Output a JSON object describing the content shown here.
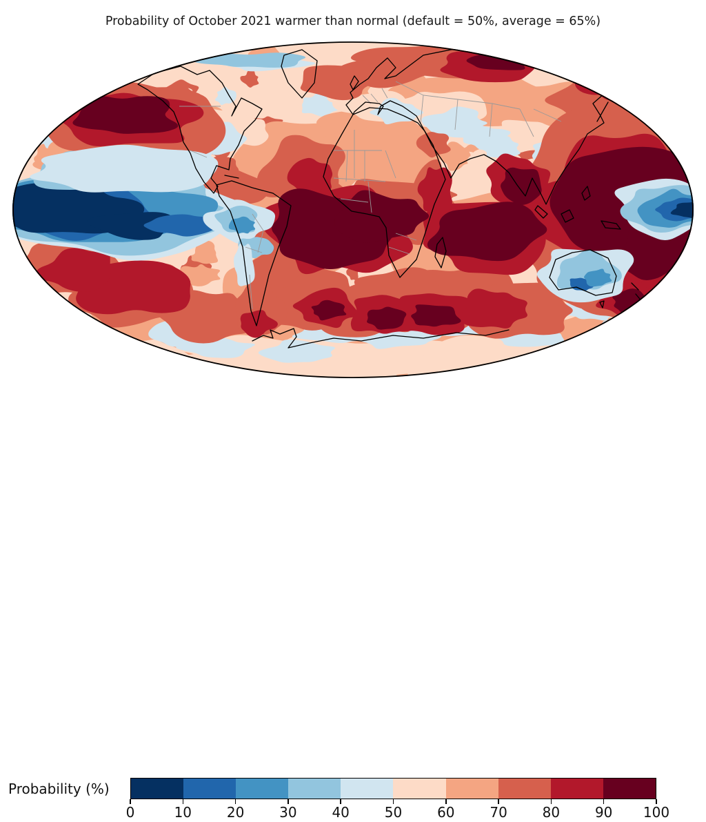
{
  "title": "Probability of October 2021 warmer than normal (default = 50%, average = 65%)",
  "colorbar": {
    "label": "Probability (%)",
    "ticks": [
      "0",
      "10",
      "20",
      "30",
      "40",
      "50",
      "60",
      "70",
      "80",
      "90",
      "100"
    ],
    "colors": [
      "#053061",
      "#2166ac",
      "#4393c3",
      "#92c5de",
      "#d1e5f0",
      "#fddbc7",
      "#f4a582",
      "#d6604d",
      "#b2182b",
      "#67001f"
    ]
  },
  "map": {
    "coastline_color": "#000000",
    "border_color": "#999999",
    "outline_color": "#000000",
    "background": "#ffffff"
  },
  "chart_data": {
    "type": "heatmap",
    "projection": "Mollweide world map (filled contours)",
    "title": "Probability of October 2021 warmer than normal (default = 50%, average = 65%)",
    "colorbar_label": "Probability (%)",
    "levels": [
      0,
      10,
      20,
      30,
      40,
      50,
      60,
      70,
      80,
      90,
      100
    ],
    "palette": [
      "#053061",
      "#2166ac",
      "#4393c3",
      "#92c5de",
      "#d1e5f0",
      "#fddbc7",
      "#f4a582",
      "#d6604d",
      "#b2182b",
      "#67001f"
    ],
    "default_probability_pct": 50,
    "global_average_probability_pct": 65,
    "regions": [
      {
        "region": "Equatorial eastern Pacific (La Nina cold tongue)",
        "probability_pct": "0-10"
      },
      {
        "region": "Subtropical south-east Pacific ring around cold tongue",
        "probability_pct": "10-40"
      },
      {
        "region": "North Pacific",
        "probability_pct": "90-100"
      },
      {
        "region": "Tropical Atlantic and equatorial Africa",
        "probability_pct": "90-100"
      },
      {
        "region": "Northern Indian Ocean, India and Bay of Bengal",
        "probability_pct": "90-100"
      },
      {
        "region": "Western tropical Pacific / Maritime Continent",
        "probability_pct": "90-100"
      },
      {
        "region": "Arctic (Siberian sector)",
        "probability_pct": "80-100"
      },
      {
        "region": "Western equatorial Pacific at map right edge",
        "probability_pct": "0-30"
      },
      {
        "region": "Central North America",
        "probability_pct": "40-60"
      },
      {
        "region": "Europe and central Asia",
        "probability_pct": "40-60"
      },
      {
        "region": "Amazon basin / western South America",
        "probability_pct": "20-40"
      },
      {
        "region": "Australia",
        "probability_pct": "20-40"
      },
      {
        "region": "Southern mid-latitude oceans",
        "probability_pct": "60-90"
      },
      {
        "region": "South Atlantic and south Indian Ocean warm cores",
        "probability_pct": "80-100"
      },
      {
        "region": "Antarctica and circumpolar fringe",
        "probability_pct": "40-60"
      }
    ]
  }
}
